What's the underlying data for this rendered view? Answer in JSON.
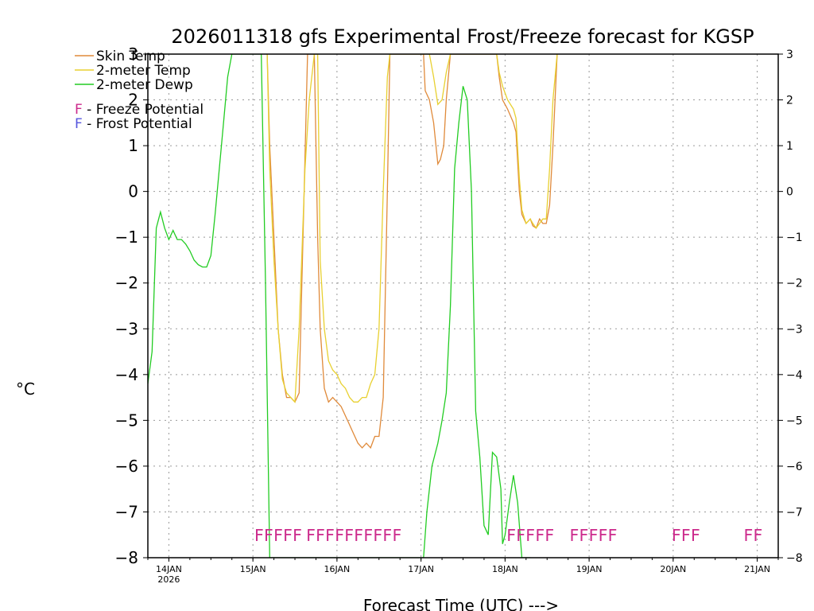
{
  "chart_data": {
    "type": "line",
    "title": "2026011318 gfs Experimental Frost/Freeze forecast for KGSP",
    "xlabel": "Forecast Time (UTC) --->",
    "ylabel": "°C",
    "ylim": [
      -8,
      3
    ],
    "xlim": [
      0,
      7.5
    ],
    "y_ticks": [
      -8,
      -7,
      -6,
      -5,
      -4,
      -3,
      -2,
      -1,
      0,
      1,
      2,
      3
    ],
    "x_ticks": [
      {
        "value": 0.25,
        "label": "14JAN",
        "sublabel": "2026"
      },
      {
        "value": 1.25,
        "label": "15JAN",
        "sublabel": ""
      },
      {
        "value": 2.25,
        "label": "16JAN",
        "sublabel": ""
      },
      {
        "value": 3.25,
        "label": "17JAN",
        "sublabel": ""
      },
      {
        "value": 4.25,
        "label": "18JAN",
        "sublabel": ""
      },
      {
        "value": 5.25,
        "label": "19JAN",
        "sublabel": ""
      },
      {
        "value": 6.25,
        "label": "20JAN",
        "sublabel": ""
      },
      {
        "value": 7.25,
        "label": "21JAN",
        "sublabel": ""
      }
    ],
    "grid": true,
    "legend": [
      {
        "label": "Skin Temp",
        "color": "#e08a3a"
      },
      {
        "label": "2-meter Temp",
        "color": "#e8d030"
      },
      {
        "label": "2-meter Dewp",
        "color": "#22cc22"
      }
    ],
    "potential_legend": [
      {
        "letter": "F",
        "text": " - Freeze Potential",
        "color": "#cc2a8c"
      },
      {
        "letter": "F",
        "text": " - Frost Potential",
        "color": "#5555dd"
      }
    ],
    "series": [
      {
        "name": "Skin Temp",
        "color": "#e08a3a",
        "x": [
          1.42,
          1.45,
          1.5,
          1.55,
          1.6,
          1.65,
          1.7,
          1.75,
          1.8,
          1.9,
          1.98,
          2.02,
          2.05,
          2.1,
          2.15,
          2.2,
          2.25,
          2.3,
          2.35,
          2.4,
          2.45,
          2.5,
          2.55,
          2.6,
          2.65,
          2.7,
          2.75,
          2.8,
          2.85,
          2.88,
          3.28,
          3.3,
          3.35,
          3.4,
          3.45,
          3.48,
          3.52,
          3.55,
          3.6,
          3.65,
          3.68,
          4.15,
          4.18,
          4.22,
          4.28,
          4.35,
          4.38,
          4.42,
          4.45,
          4.5,
          4.55,
          4.58,
          4.62,
          4.66,
          4.7,
          4.74,
          4.78,
          4.82,
          4.87
        ],
        "y": [
          3,
          1,
          -1,
          -3,
          -4,
          -4.5,
          -4.5,
          -4.6,
          -4.4,
          3,
          3,
          -1,
          -3,
          -4.3,
          -4.6,
          -4.5,
          -4.6,
          -4.7,
          -4.9,
          -5.1,
          -5.3,
          -5.5,
          -5.6,
          -5.5,
          -5.6,
          -5.35,
          -5.35,
          -4.5,
          0,
          3,
          3,
          2.2,
          2,
          1.5,
          0.6,
          0.7,
          1,
          2,
          3,
          3,
          3,
          3,
          2.5,
          2,
          1.8,
          1.5,
          1.3,
          0,
          -0.5,
          -0.7,
          -0.6,
          -0.75,
          -0.8,
          -0.6,
          -0.7,
          -0.7,
          -0.3,
          1,
          3
        ]
      },
      {
        "name": "2-meter Temp",
        "color": "#e8d030",
        "x": [
          1.42,
          1.45,
          1.5,
          1.55,
          1.6,
          1.65,
          1.7,
          1.75,
          1.8,
          1.87,
          1.92,
          1.98,
          2.02,
          2.05,
          2.1,
          2.15,
          2.2,
          2.25,
          2.3,
          2.35,
          2.4,
          2.45,
          2.5,
          2.55,
          2.6,
          2.65,
          2.7,
          2.75,
          2.8,
          2.85,
          2.88,
          3.3,
          3.35,
          3.4,
          3.45,
          3.5,
          3.55,
          3.6,
          3.65,
          3.7,
          4.15,
          4.18,
          4.22,
          4.28,
          4.35,
          4.38,
          4.42,
          4.45,
          4.5,
          4.55,
          4.58,
          4.62,
          4.66,
          4.7,
          4.74,
          4.78,
          4.82,
          4.87
        ],
        "y": [
          3,
          0.5,
          -1.5,
          -3,
          -4.1,
          -4.4,
          -4.5,
          -4.6,
          -3,
          0.5,
          2,
          3,
          3,
          -1.5,
          -3,
          -3.7,
          -3.9,
          -4,
          -4.2,
          -4.3,
          -4.5,
          -4.6,
          -4.6,
          -4.5,
          -4.5,
          -4.2,
          -4,
          -3,
          0,
          2.5,
          3,
          3,
          3,
          2.5,
          1.9,
          2,
          2.6,
          3,
          3,
          3,
          3,
          2.6,
          2.3,
          2,
          1.8,
          1.6,
          0.3,
          -0.4,
          -0.7,
          -0.6,
          -0.7,
          -0.8,
          -0.7,
          -0.6,
          -0.6,
          0.5,
          2,
          3
        ]
      },
      {
        "name": "2-meter Dewp",
        "color": "#22cc22",
        "x": [
          0,
          0.05,
          0.1,
          0.15,
          0.2,
          0.25,
          0.3,
          0.35,
          0.4,
          0.45,
          0.5,
          0.55,
          0.6,
          0.65,
          0.7,
          0.75,
          0.8,
          0.85,
          0.9,
          0.95,
          1.0,
          1.05,
          1.1,
          1.15,
          1.2,
          1.25,
          1.3,
          1.35,
          1.4,
          1.45,
          3.28,
          3.32,
          3.38,
          3.45,
          3.5,
          3.55,
          3.6,
          3.65,
          3.7,
          3.75,
          3.8,
          3.85,
          3.9,
          3.95,
          4.0,
          4.05,
          4.1,
          4.15,
          4.2,
          4.22,
          4.25,
          4.3,
          4.35,
          4.4,
          4.45,
          4.48,
          4.52,
          4.55
        ],
        "y": [
          -4.2,
          -3.5,
          -0.8,
          -0.45,
          -0.8,
          -1.05,
          -0.85,
          -1.05,
          -1.05,
          -1.15,
          -1.3,
          -1.5,
          -1.6,
          -1.65,
          -1.65,
          -1.4,
          -0.5,
          0.5,
          1.5,
          2.5,
          3,
          3,
          3,
          3,
          3,
          3,
          3,
          3,
          -2,
          -8,
          -8,
          -7,
          -6,
          -5.5,
          -5,
          -4.4,
          -2.5,
          0.5,
          1.5,
          2.3,
          2,
          0,
          -4.8,
          -5.8,
          -7.3,
          -7.5,
          -5.7,
          -5.8,
          -6.5,
          -7.7,
          -7.5,
          -6.8,
          -6.2,
          -6.8,
          -8,
          -8,
          -8,
          -8
        ]
      }
    ],
    "potential_markers": [
      {
        "text": "FFFFF",
        "x": 1.55,
        "color": "#cc2a8c"
      },
      {
        "text": "FFFFFFFFFF",
        "x": 2.45,
        "color": "#cc2a8c"
      },
      {
        "text": "FFFFF",
        "x": 4.55,
        "color": "#cc2a8c"
      },
      {
        "text": "FFFFF",
        "x": 5.3,
        "color": "#cc2a8c"
      },
      {
        "text": "FFF",
        "x": 6.4,
        "color": "#cc2a8c"
      },
      {
        "text": "FF",
        "x": 7.2,
        "color": "#cc2a8c"
      }
    ]
  }
}
